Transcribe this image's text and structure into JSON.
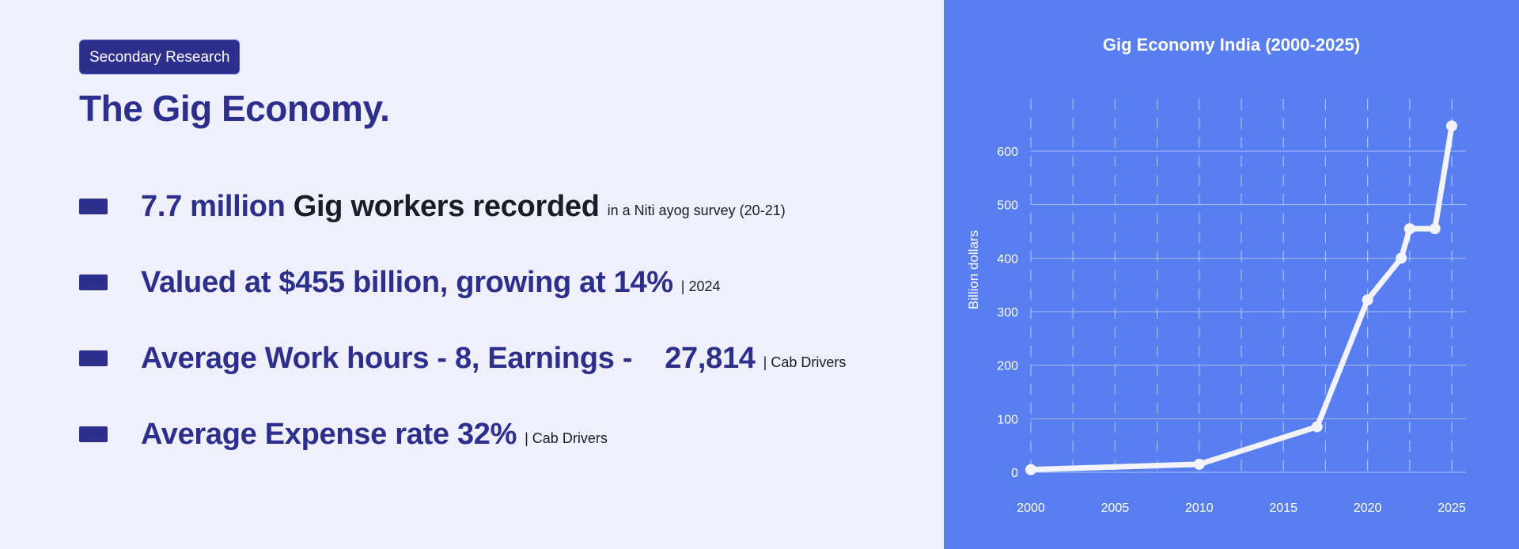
{
  "tag": "Secondary Research",
  "title": "The Gig Economy.",
  "bullets": [
    {
      "accent": "7.7 million ",
      "main": "Gig workers recorded",
      "note": "in a Niti ayog survey (20-21)"
    },
    {
      "main": "Valued at $455 billion, growing at 14%",
      "note": "| 2024"
    },
    {
      "main": "Average Work hours - 8, Earnings -    27,814",
      "note": "| Cab Drivers"
    },
    {
      "main": "Average Expense rate 32%",
      "note": "| Cab Drivers"
    }
  ],
  "colors": {
    "accent": "#2c2f8b",
    "panel": "#587ef0",
    "background": "#eff0fb",
    "line": "#f2f3fb"
  },
  "chart_data": {
    "type": "line",
    "title": "Gig Economy India (2000-2025)",
    "xlabel": "",
    "ylabel": "Billion dollars",
    "x": [
      2000,
      2010,
      2017,
      2020,
      2022,
      2022.5,
      2024,
      2025
    ],
    "series": [
      {
        "values": [
          5,
          15,
          85,
          322,
          400,
          455,
          455,
          647
        ]
      }
    ],
    "xticks": [
      "2000",
      "2005",
      "2010",
      "2015",
      "2020",
      "2025"
    ],
    "yticks": [
      "0",
      "100",
      "200",
      "300",
      "400",
      "500",
      "600"
    ],
    "xlim": [
      2000,
      2025
    ],
    "ylim": [
      0,
      600
    ],
    "grid": "on"
  }
}
